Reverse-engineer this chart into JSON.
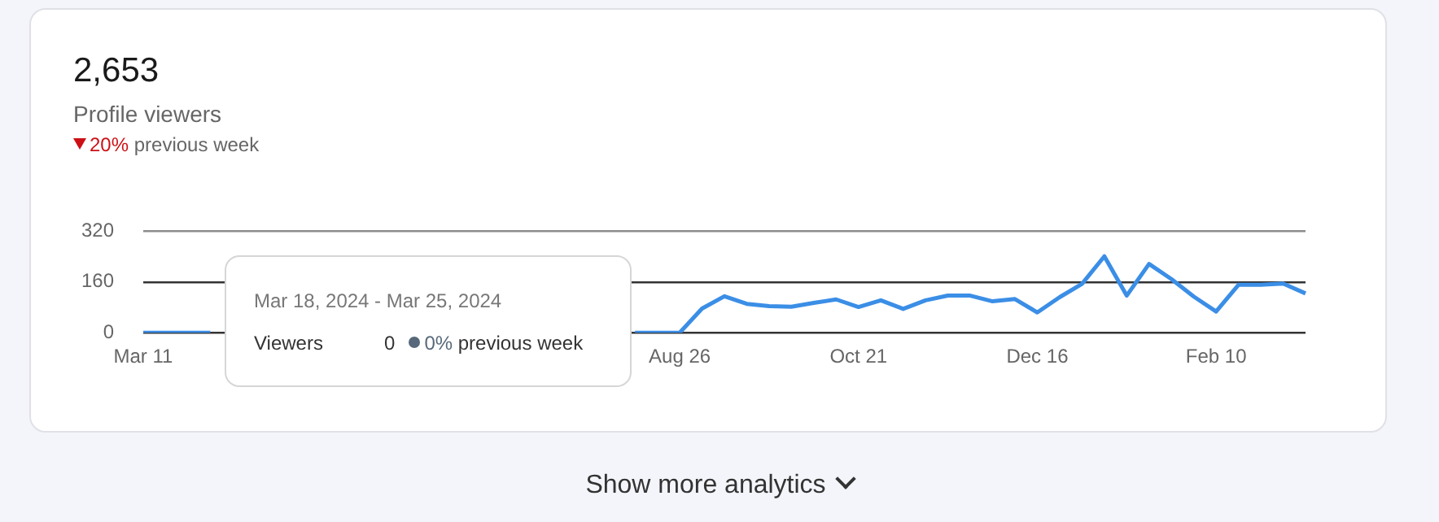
{
  "chart_data": {
    "type": "line",
    "title": "2,653",
    "subtitle": "Profile viewers",
    "annotations": [
      "20%",
      "previous week",
      "Mar 18, 2024 - Mar 25, 2024",
      "Viewers",
      "0",
      "0%",
      "previous week",
      "Show more analytics"
    ],
    "categories": [
      "Mar 11",
      null,
      null,
      null,
      null,
      null,
      null,
      null,
      null,
      null,
      null,
      null,
      null,
      null,
      null,
      null,
      null,
      null,
      null,
      null,
      null,
      null,
      null,
      null,
      "Aug 26",
      null,
      null,
      null,
      null,
      null,
      null,
      null,
      "Oct 21",
      null,
      null,
      null,
      null,
      null,
      null,
      null,
      "Dec 16",
      null,
      null,
      null,
      null,
      null,
      null,
      null,
      "Feb 10",
      null,
      null,
      null,
      null
    ],
    "series": [
      {
        "color": "#3b8ee6",
        "values": [
          0,
          0,
          0,
          0,
          null,
          null,
          null,
          null,
          null,
          null,
          null,
          null,
          null,
          null,
          null,
          null,
          null,
          null,
          null,
          null,
          null,
          null,
          0,
          0,
          0,
          76,
          115,
          91,
          84,
          82,
          94,
          105,
          81,
          102,
          75,
          102,
          117,
          117,
          99,
          106,
          64,
          112,
          154,
          241,
          117,
          217,
          169,
          114,
          67,
          151,
          151,
          155,
          124
        ]
      }
    ],
    "ylim": [
      0,
      320
    ],
    "yticks": [
      0,
      160,
      320
    ],
    "grid": "y",
    "legend": false,
    "marker": "none",
    "line_style": "solid"
  }
}
